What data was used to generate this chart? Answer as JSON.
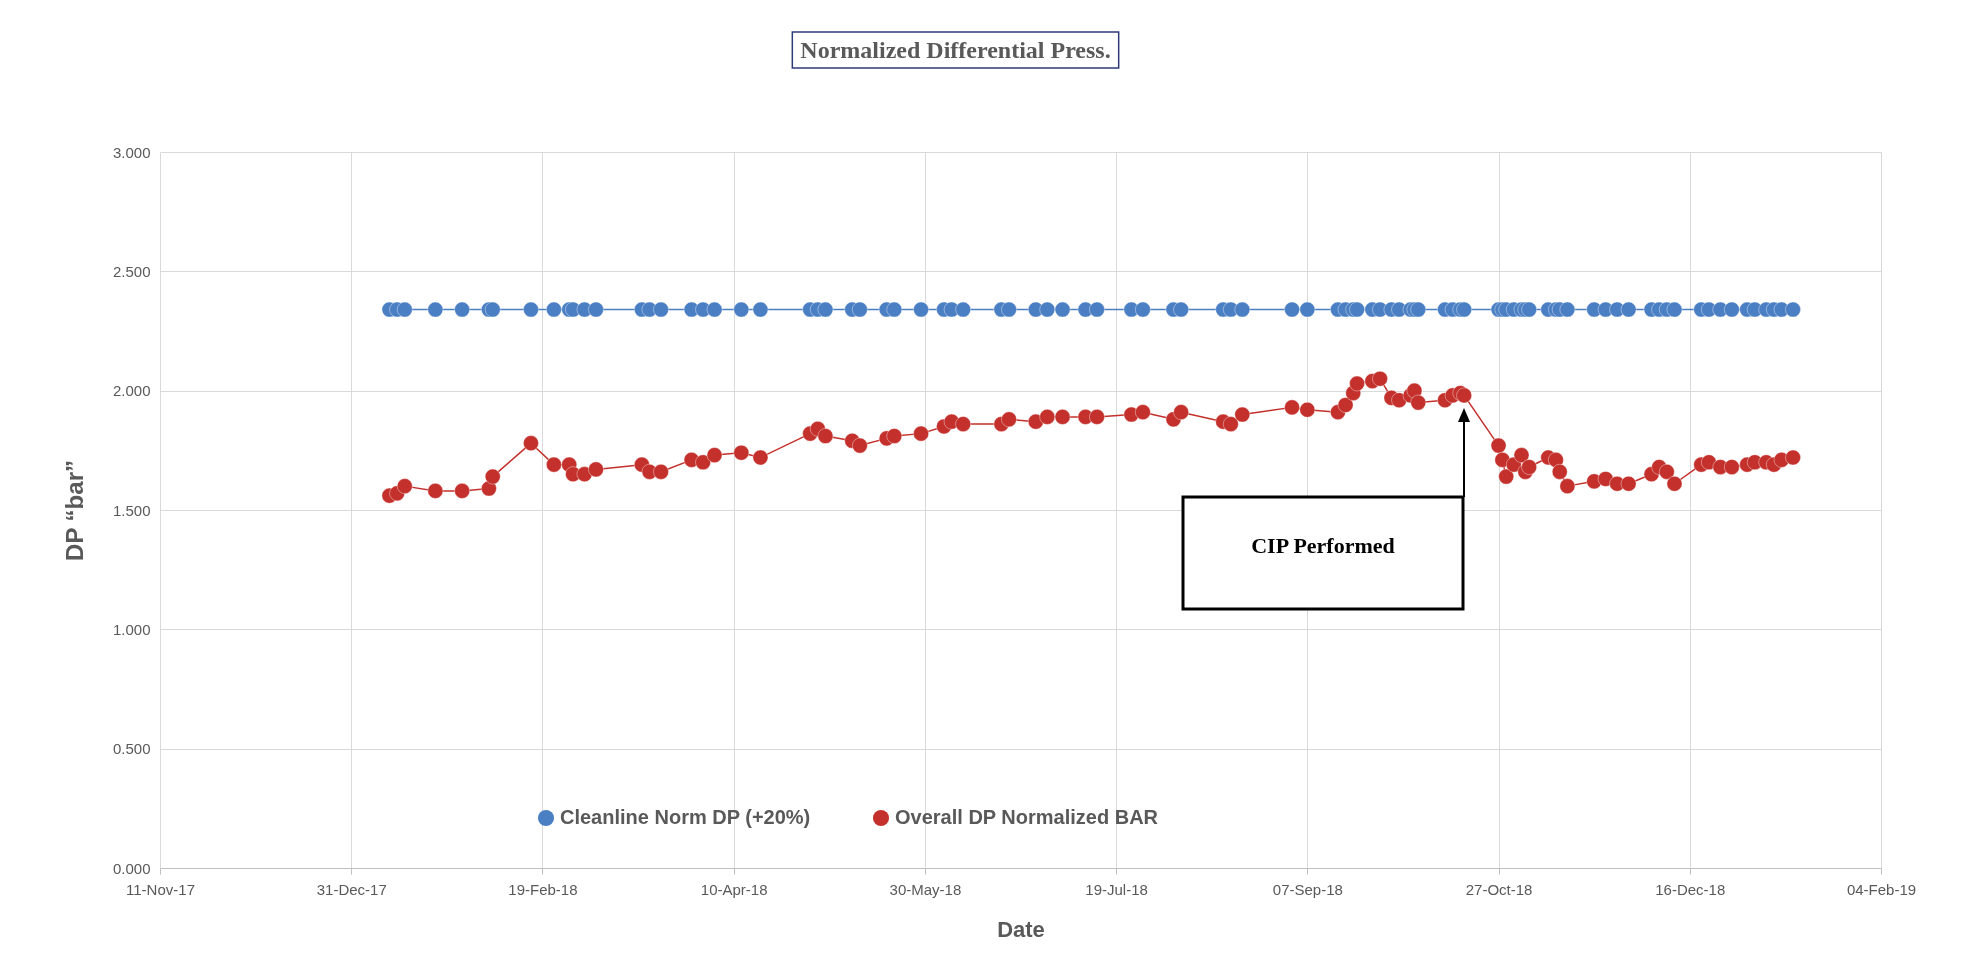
{
  "chart_data": {
    "type": "line",
    "title": "Normalized Differential Press.",
    "xlabel": "Date",
    "ylabel": "DP “bar”",
    "x": [
      "2018-01-10",
      "2018-01-12",
      "2018-01-14",
      "2018-01-22",
      "2018-01-29",
      "2018-02-05",
      "2018-02-06",
      "2018-02-16",
      "2018-02-22",
      "2018-02-26",
      "2018-02-27",
      "2018-03-02",
      "2018-03-05",
      "2018-03-17",
      "2018-03-19",
      "2018-03-22",
      "2018-03-30",
      "2018-04-02",
      "2018-04-05",
      "2018-04-12",
      "2018-04-17",
      "2018-04-30",
      "2018-05-02",
      "2018-05-04",
      "2018-05-11",
      "2018-05-13",
      "2018-05-20",
      "2018-05-22",
      "2018-05-29",
      "2018-06-04",
      "2018-06-06",
      "2018-06-09",
      "2018-06-19",
      "2018-06-21",
      "2018-06-28",
      "2018-07-01",
      "2018-07-05",
      "2018-07-11",
      "2018-07-14",
      "2018-07-23",
      "2018-07-26",
      "2018-08-03",
      "2018-08-05",
      "2018-08-16",
      "2018-08-18",
      "2018-08-21",
      "2018-09-03",
      "2018-09-07",
      "2018-09-15",
      "2018-09-17",
      "2018-09-19",
      "2018-09-20",
      "2018-09-24",
      "2018-09-26",
      "2018-09-29",
      "2018-10-01",
      "2018-10-04",
      "2018-10-05",
      "2018-10-06",
      "2018-10-13",
      "2018-10-15",
      "2018-10-17",
      "2018-10-18",
      "2018-10-27",
      "2018-10-28",
      "2018-10-29",
      "2018-10-31",
      "2018-11-02",
      "2018-11-03",
      "2018-11-04",
      "2018-11-09",
      "2018-11-11",
      "2018-11-12",
      "2018-11-14",
      "2018-11-21",
      "2018-11-24",
      "2018-11-27",
      "2018-11-30",
      "2018-12-06",
      "2018-12-08",
      "2018-12-10",
      "2018-12-12",
      "2018-12-19",
      "2018-12-21",
      "2018-12-24",
      "2018-12-27",
      "2018-12-31",
      "2019-01-02",
      "2019-01-05",
      "2019-01-07",
      "2019-01-09",
      "2019-01-12"
    ],
    "series": [
      {
        "name": "Cleanline Norm DP (+20%)",
        "color": "#4a7fc4",
        "values": [
          2.34,
          2.34,
          2.34,
          2.34,
          2.34,
          2.34,
          2.34,
          2.34,
          2.34,
          2.34,
          2.34,
          2.34,
          2.34,
          2.34,
          2.34,
          2.34,
          2.34,
          2.34,
          2.34,
          2.34,
          2.34,
          2.34,
          2.34,
          2.34,
          2.34,
          2.34,
          2.34,
          2.34,
          2.34,
          2.34,
          2.34,
          2.34,
          2.34,
          2.34,
          2.34,
          2.34,
          2.34,
          2.34,
          2.34,
          2.34,
          2.34,
          2.34,
          2.34,
          2.34,
          2.34,
          2.34,
          2.34,
          2.34,
          2.34,
          2.34,
          2.34,
          2.34,
          2.34,
          2.34,
          2.34,
          2.34,
          2.34,
          2.34,
          2.34,
          2.34,
          2.34,
          2.34,
          2.34,
          2.34,
          2.34,
          2.34,
          2.34,
          2.34,
          2.34,
          2.34,
          2.34,
          2.34,
          2.34,
          2.34,
          2.34,
          2.34,
          2.34,
          2.34,
          2.34,
          2.34,
          2.34,
          2.34,
          2.34,
          2.34,
          2.34,
          2.34,
          2.34,
          2.34,
          2.34,
          2.34,
          2.34,
          2.34
        ]
      },
      {
        "name": "Overall DP Normalized BAR",
        "color": "#c4302b",
        "values": [
          1.56,
          1.57,
          1.6,
          1.58,
          1.58,
          1.59,
          1.64,
          1.78,
          1.69,
          1.69,
          1.65,
          1.65,
          1.67,
          1.69,
          1.66,
          1.66,
          1.71,
          1.7,
          1.73,
          1.74,
          1.72,
          1.82,
          1.84,
          1.81,
          1.79,
          1.77,
          1.8,
          1.81,
          1.82,
          1.85,
          1.87,
          1.86,
          1.86,
          1.88,
          1.87,
          1.89,
          1.89,
          1.89,
          1.89,
          1.9,
          1.91,
          1.88,
          1.91,
          1.87,
          1.86,
          1.9,
          1.93,
          1.92,
          1.91,
          1.94,
          1.99,
          2.03,
          2.04,
          2.05,
          1.97,
          1.96,
          1.98,
          2.0,
          1.95,
          1.96,
          1.98,
          1.99,
          1.98,
          1.77,
          1.71,
          1.64,
          1.69,
          1.73,
          1.66,
          1.68,
          1.72,
          1.71,
          1.66,
          1.6,
          1.62,
          1.63,
          1.61,
          1.61,
          1.65,
          1.68,
          1.66,
          1.61,
          1.69,
          1.7,
          1.68,
          1.68,
          1.69,
          1.7,
          1.7,
          1.69,
          1.71,
          1.72
        ]
      }
    ],
    "xlim": [
      "2017-11-11",
      "2019-02-04"
    ],
    "xticks": [
      {
        "value": "2017-11-11",
        "label": "11-Nov-17"
      },
      {
        "value": "2017-12-31",
        "label": "31-Dec-17"
      },
      {
        "value": "2018-02-19",
        "label": "19-Feb-18"
      },
      {
        "value": "2018-04-10",
        "label": "10-Apr-18"
      },
      {
        "value": "2018-05-30",
        "label": "30-May-18"
      },
      {
        "value": "2018-07-19",
        "label": "19-Jul-18"
      },
      {
        "value": "2018-09-07",
        "label": "07-Sep-18"
      },
      {
        "value": "2018-10-27",
        "label": "27-Oct-18"
      },
      {
        "value": "2018-12-16",
        "label": "16-Dec-18"
      },
      {
        "value": "2019-02-04",
        "label": "04-Feb-19"
      }
    ],
    "ylim": [
      0,
      3
    ],
    "yticks": [
      {
        "value": 0,
        "label": "0.000"
      },
      {
        "value": 0.5,
        "label": "0.500"
      },
      {
        "value": 1,
        "label": "1.000"
      },
      {
        "value": 1.5,
        "label": "1.500"
      },
      {
        "value": 2,
        "label": "2.000"
      },
      {
        "value": 2.5,
        "label": "2.500"
      },
      {
        "value": 3,
        "label": "3.000"
      }
    ],
    "annotations": [
      "CIP Performed"
    ],
    "grid": true,
    "legend": "bottom",
    "marker": "circle",
    "line_style": "solid"
  }
}
